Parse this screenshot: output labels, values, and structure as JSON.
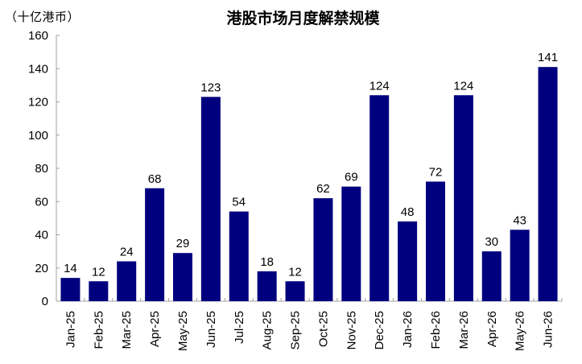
{
  "chart_data": {
    "type": "bar",
    "title": "港股市场月度解禁规模",
    "ylabel": "（十亿港币）",
    "xlabel": "",
    "ylim": [
      0,
      160
    ],
    "yticks": [
      0,
      20,
      40,
      60,
      80,
      100,
      120,
      140,
      160
    ],
    "grid": false,
    "legend": null,
    "bar_color": "#00007F",
    "categories": [
      "Jan-25",
      "Feb-25",
      "Mar-25",
      "Apr-25",
      "May-25",
      "Jun-25",
      "Jul-25",
      "Aug-25",
      "Sep-25",
      "Oct-25",
      "Nov-25",
      "Dec-25",
      "Jan-26",
      "Feb-26",
      "Mar-26",
      "Apr-26",
      "May-26",
      "Jun-26"
    ],
    "values": [
      14,
      12,
      24,
      68,
      29,
      123,
      54,
      18,
      12,
      62,
      69,
      124,
      48,
      72,
      124,
      30,
      43,
      141
    ],
    "data_labels": true
  },
  "header": {
    "unit": "（十亿港币）",
    "title": "港股市场月度解禁规模"
  }
}
